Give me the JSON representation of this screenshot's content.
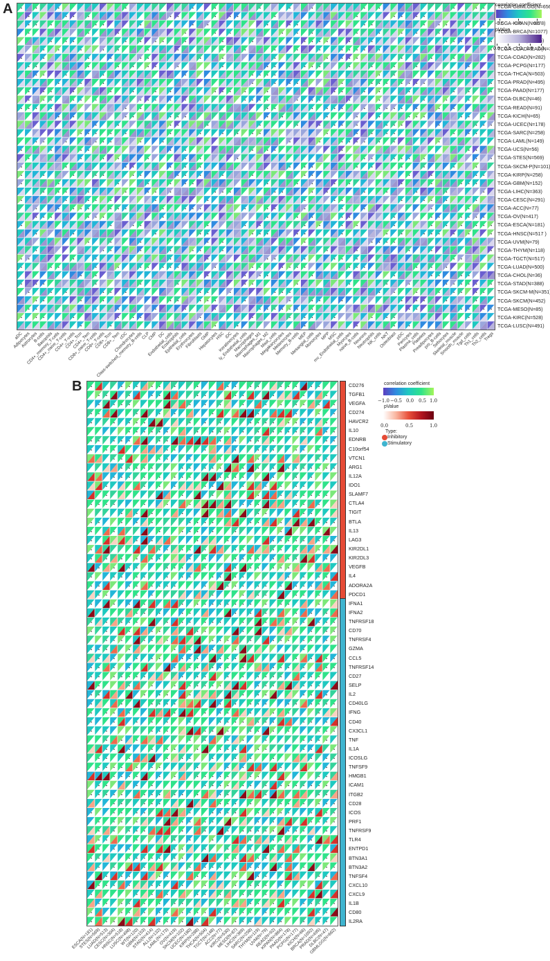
{
  "panel_a": {
    "letter": "A",
    "legend": {
      "corr_title": "correlation coefficient",
      "corr_ticks": [
        "-0.5",
        "0.0",
        "0.5"
      ],
      "corr_colors": [
        "#5b3fbf",
        "#2f8be0",
        "#1fc9c0",
        "#2fe38a",
        "#a4f55a"
      ],
      "p_title": "pValue",
      "p_ticks": [
        "0.0",
        "0.5",
        "1.0",
        "1.5",
        "2.0"
      ],
      "p_colors": [
        "#ffffff",
        "#4b1f8a"
      ]
    }
  },
  "panel_b": {
    "letter": "B",
    "legend": {
      "corr_title": "correlation coefficient",
      "corr_ticks": [
        "−1.0",
        "−0.5",
        "0.0",
        "0.5",
        "1.0"
      ],
      "p_title": "pValue",
      "p_ticks": [
        "0.0",
        "0.5",
        "1.0"
      ],
      "p_colors": [
        "#ffffff",
        "#e8503a",
        "#6b0010"
      ],
      "type_title": "Type:",
      "types": [
        {
          "label": "Inhibitory",
          "color": "#e54b36"
        },
        {
          "label": "Stimulatory",
          "color": "#3fb4cf"
        }
      ]
    }
  },
  "chart_data": [
    {
      "type": "heatmap",
      "title": "",
      "description": "Triangle heatmap: upper-left triangle = correlation coefficient, lower-right triangle = pValue (-log10), dot marks significance",
      "rows": [
        "TCGA-GBMLGG(N=656)",
        "TCGA-LGG(N=504)",
        "TCGA-KIPAN(N=878)",
        "TCGA-BRCA(N=1077)",
        "TCGA-BLCA(N=405)",
        "TCGA-COADREAD(N=373)",
        "TCGA-COAD(N=282)",
        "TCGA-PCPG(N=177)",
        "TCGA-THCA(N=503)",
        "TCGA-PRAD(N=495)",
        "TCGA-PAAD(N=177)",
        "TCGA-DLBC(N=46)",
        "TCGA-READ(N=91)",
        "TCGA-KICH(N=65)",
        "TCGA-UCEC(N=178)",
        "TCGA-SARC(N=258)",
        "TCGA-LAML(N=149)",
        "TCGA-UCS(N=56)",
        "TCGA-STES(N=569)",
        "TCGA-SKCM-P(N=101)",
        "TCGA-KIRP(N=258)",
        "TCGA-GBM(N=152)",
        "TCGA-LIHC(N=363)",
        "TCGA-CESC(N=291)",
        "TCGA-ACC(N=77)",
        "TCGA-OV(N=417)",
        "TCGA-ESCA(N=181)",
        "TCGA-HNSC(N=517 )",
        "TCGA-UVM(N=79)",
        "TCGA-THYM(N=118)",
        "TCGA-TGCT(N=517)",
        "TCGA-LUAD(N=500)",
        "TCGA-CHOL(N=36)",
        "TCGA-STAD(N=388)",
        "TCGA-SKCM-M(N=351)",
        "TCGA-SKCM(N=452)",
        "TCGA-MESO(N=85)",
        "TCGA-KIRC(N=528)",
        "TCGA-LUSC(N=491)"
      ],
      "columns": [
        "aDC",
        "Adipocytes",
        "Astrocytes",
        "B-cells",
        "Basophils",
        "CD4+_memory_T-cells",
        "CD4+_naive_T-cells",
        "CD4+_T-cells",
        "CD4+_Tcm",
        "CD4+_Tem",
        "CD8+_naive_T-cells",
        "CD8+_T-cells",
        "CD8+_Tcm",
        "CD8+_Tem",
        "cDC",
        "Chondrocytes",
        "Class-switched_memory_B-cells",
        "CLP",
        "CMP",
        "DC",
        "Endothelial_cells",
        "Eosinophils",
        "Epithelial_cells",
        "Erythrocytes",
        "Fibroblasts",
        "GMP",
        "Hepatocytes",
        "HSC",
        "iDC",
        "Keratinocytes",
        "ly_Endothelial_cells",
        "Macrophages",
        "Macrophages_M1",
        "Macrophages_M2",
        "Mast_cells",
        "Megakaryocytes",
        "Melanocytes",
        "Memory_B-cells",
        "MEP",
        "Mesangial_cells",
        "Monocytes",
        "MPP",
        "MSC",
        "mv_Endothelial_cells",
        "Myocytes",
        "naive_B-cells",
        "Neurons",
        "Neutrophils",
        "NK_cells",
        "NKT",
        "Osteoblast",
        "pDC",
        "Pericytes",
        "Plasma_cells",
        "Platelets",
        "Preadipocytes",
        "pro_B-cells",
        "Sebocytes",
        "Skeletal_muscle",
        "Smooth_muscle",
        "Tgd_cells",
        "Th1_cells",
        "Th2_cells",
        "Tregs",
        "ImmuneScore",
        "StromaScore",
        "MicroenvironmentScore"
      ],
      "legend": {
        "correlation_range": [
          -0.7,
          0.7
        ],
        "pvalue_range": [
          0,
          2
        ]
      }
    },
    {
      "type": "heatmap",
      "title": "",
      "description": "Triangle heatmap of immune checkpoint genes vs TCGA cancers: upper-left triangle = correlation, lower-right = pValue; row annotation Type",
      "rows": [
        "CD276",
        "TGFB1",
        "VEGFA",
        "CD274",
        "HAVCR2",
        "IL10",
        "EDNRB",
        "C10orf54",
        "VTCN1",
        "ARG1",
        "IL12A",
        "IDO1",
        "SLAMF7",
        "CTLA4",
        "TIGIT",
        "BTLA",
        "IL13",
        "LAG3",
        "KIR2DL1",
        "KIR2DL3",
        "VEGFB",
        "IL4",
        "ADORA2A",
        "PDCD1",
        "IFNA1",
        "IFNA2",
        "TNFRSF18",
        "CD70",
        "TNFRSF4",
        "GZMA",
        "CCL5",
        "TNFRSF14",
        "CD27",
        "SELP",
        "IL2",
        "CD40LG",
        "IFNG",
        "CD40",
        "CX3CL1",
        "TNF",
        "IL1A",
        "ICOSLG",
        "TNFSF9",
        "HMGB1",
        "ICAM1",
        "ITGB2",
        "CD28",
        "ICOS",
        "PRF1",
        "TNFRSF9",
        "TLR4",
        "ENTPD1",
        "BTN3A1",
        "BTN3A2",
        "TNFSF4",
        "CXCL10",
        "CXCL9",
        "IL1B",
        "CD80",
        "IL2RA"
      ],
      "row_types": {
        "Inhibitory": 24,
        "Stimulatory": 36
      },
      "columns": [
        "ESCA(N=181)",
        "STES(N=569)",
        "LUAD(N=513)",
        "CESC(N=304)",
        "HNSC(N=518)",
        "LUSC(N=498)",
        "WT(N=120)",
        "GBM(N=153)",
        "STAD(N=414)",
        "ALL(N=132)",
        "LAML(N=173)",
        "OV(N=419)",
        "SKCM(N=102)",
        "UCEC(N=180)",
        "KIRP(N=288)",
        "THCA(N=504)",
        "TGCT(N=148)",
        "ACC(N=77)",
        "KIRC(N=530)",
        "MESO(N=87)",
        "LIHC(N=369)",
        "SARC(N=258)",
        "THYM(N=119)",
        "UVM(N=79)",
        "READ(N=92)",
        "KIPAN(N=884)",
        "PAAD(N=178)",
        "PCPG(N=177)",
        "KICH(N=66)",
        "BRCA(N=1092)",
        "PRAD(N=495)",
        "DLBC(N=47)",
        "GBMLGG(N=662)",
        "LGG(N=509)",
        "BLCA(N=407)",
        "COAD(N=288)",
        "COADREAD(N=380)"
      ],
      "legend": {
        "correlation_range": [
          -1.0,
          1.0
        ],
        "pvalue_range": [
          0,
          1.0
        ]
      }
    }
  ]
}
